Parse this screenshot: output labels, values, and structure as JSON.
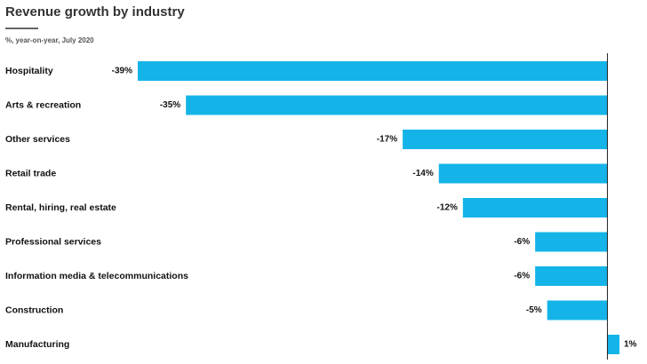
{
  "chart_data": {
    "type": "bar",
    "orientation": "horizontal",
    "title": "Revenue growth by industry",
    "subtitle": "%, year-on-year, July 2020",
    "categories": [
      "Hospitality",
      "Arts & recreation",
      "Other services",
      "Retail trade",
      "Rental, hiring, real estate",
      "Professional services",
      "Information media & telecommunications",
      "Construction",
      "Manufacturing"
    ],
    "values": [
      -39,
      -35,
      -17,
      -14,
      -12,
      -6,
      -6,
      -5,
      1
    ],
    "value_labels": [
      "-39%",
      "-35%",
      "-17%",
      "-14%",
      "-12%",
      "-6%",
      "-6%",
      "-5%",
      "1%"
    ],
    "color": "#14b4e8"
  }
}
